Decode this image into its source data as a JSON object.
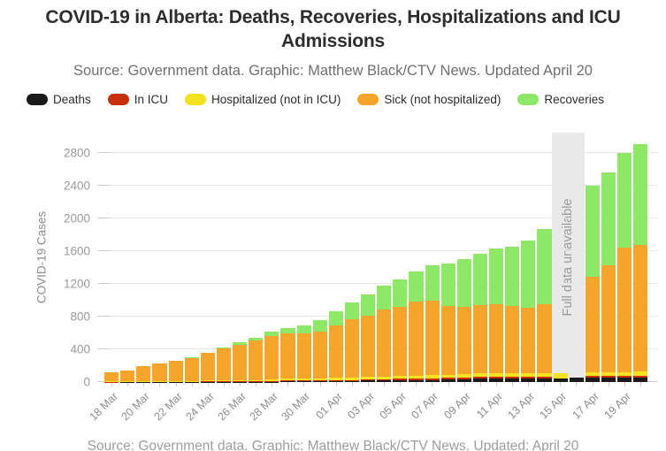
{
  "chart_data": {
    "type": "bar",
    "stacked": true,
    "title": "COVID-19 in Alberta: Deaths, Recoveries, Hospitalizations and ICU Admissions",
    "subtitle": "Source: Government data. Graphic: Matthew Black/CTV News. Updated April 20",
    "footer": "Source: Government data. Graphic: Matthew Black/CTV News.  Updated: April 20",
    "xlabel": "",
    "ylabel": "COVID-19 Cases",
    "ylim": [
      0,
      3050
    ],
    "yticks": [
      0,
      400,
      800,
      1200,
      1600,
      2000,
      2400,
      2800
    ],
    "gridlines": true,
    "legend_position": "top",
    "x_label_every": 2,
    "categories": [
      "18 Mar",
      "19 Mar",
      "20 Mar",
      "21 Mar",
      "22 Mar",
      "23 Mar",
      "24 Mar",
      "25 Mar",
      "26 Mar",
      "27 Mar",
      "28 Mar",
      "29 Mar",
      "30 Mar",
      "31 Mar",
      "01 Apr",
      "02 Apr",
      "03 Apr",
      "04 Apr",
      "05 Apr",
      "06 Apr",
      "07 Apr",
      "08 Apr",
      "09 Apr",
      "10 Apr",
      "11 Apr",
      "12 Apr",
      "13 Apr",
      "14 Apr",
      "15 Apr",
      "16 Apr",
      "17 Apr",
      "18 Apr",
      "19 Apr",
      "20 Apr"
    ],
    "series": [
      {
        "name": "Deaths",
        "color": "#1a1a1a",
        "values": [
          0,
          1,
          1,
          1,
          1,
          1,
          2,
          2,
          2,
          2,
          3,
          8,
          8,
          9,
          11,
          13,
          18,
          20,
          23,
          24,
          26,
          29,
          32,
          40,
          44,
          46,
          46,
          48,
          48,
          50,
          50,
          51,
          55,
          59
        ]
      },
      {
        "name": "In ICU",
        "color": "#c8300c",
        "values": [
          2,
          2,
          2,
          2,
          2,
          3,
          4,
          6,
          7,
          9,
          10,
          11,
          12,
          13,
          14,
          14,
          15,
          16,
          17,
          18,
          19,
          20,
          20,
          21,
          21,
          21,
          20,
          19,
          0,
          0,
          21,
          20,
          21,
          20
        ]
      },
      {
        "name": "Hospitalized (not in ICU)",
        "color": "#f2e21f",
        "values": [
          5,
          5,
          6,
          7,
          9,
          10,
          11,
          13,
          14,
          16,
          19,
          21,
          24,
          25,
          26,
          28,
          29,
          32,
          33,
          38,
          42,
          42,
          44,
          44,
          45,
          44,
          44,
          43,
          58,
          0,
          46,
          47,
          48,
          49
        ]
      },
      {
        "name": "Sick (not hospitalized)",
        "color": "#f5a42c",
        "values": [
          112,
          138,
          186,
          216,
          247,
          284,
          338,
          395,
          436,
          485,
          532,
          556,
          552,
          565,
          646,
          709,
          754,
          817,
          851,
          907,
          906,
          841,
          828,
          838,
          843,
          822,
          799,
          846,
          0,
          0,
          1170,
          1312,
          1518,
          1550
        ]
      },
      {
        "name": "Recoveries",
        "color": "#8de868",
        "values": [
          0,
          0,
          0,
          0,
          0,
          3,
          3,
          3,
          27,
          30,
          57,
          65,
          94,
          142,
          174,
          205,
          259,
          296,
          326,
          361,
          430,
          519,
          576,
          626,
          679,
          718,
          823,
          914,
          0,
          0,
          1110,
          1132,
          1161,
          1230
        ]
      }
    ],
    "annotation": {
      "label": "Full data unavailable",
      "from": "15 Apr",
      "to": "16 Apr",
      "band_color": "#e9e9e9"
    }
  }
}
